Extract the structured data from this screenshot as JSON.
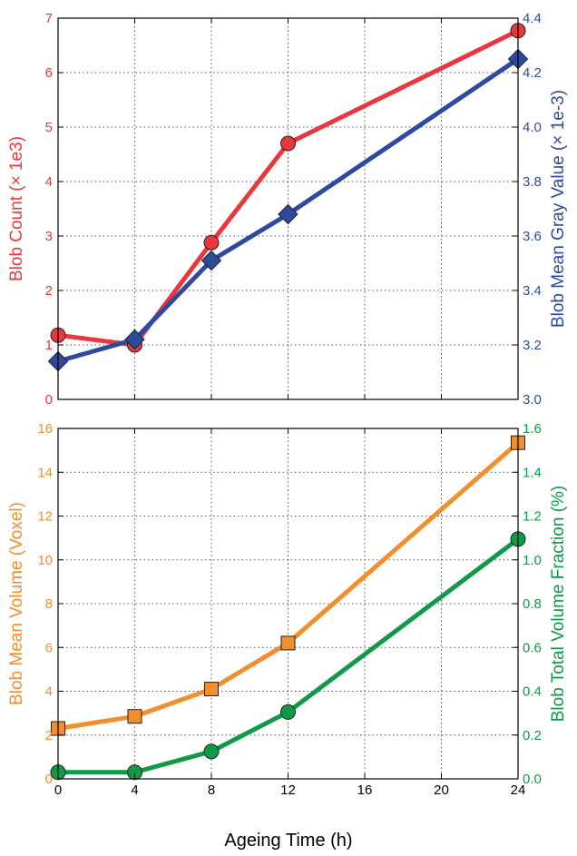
{
  "chart_data": [
    {
      "type": "line",
      "x": [
        0,
        4,
        8,
        12,
        24
      ],
      "xticks": [
        "0",
        "4",
        "8",
        "12",
        "16",
        "20",
        "24"
      ],
      "xlim": [
        0,
        24
      ],
      "grid": true,
      "left_axis": {
        "label": "Blob Count  (× 1e3)",
        "ylim": [
          0,
          7
        ],
        "ticks": [
          "0",
          "1",
          "2",
          "3",
          "4",
          "5",
          "6",
          "7"
        ],
        "color": "#e8383d"
      },
      "right_axis": {
        "label": "Blob Mean Gray Value (× 1e-3)",
        "ylim": [
          3.0,
          4.4
        ],
        "ticks": [
          "3.0",
          "3.2",
          "3.4",
          "3.6",
          "3.8",
          "4.0",
          "4.2",
          "4.4"
        ],
        "color": "#2e4a9e"
      },
      "series": [
        {
          "axis": "left",
          "marker": "circle",
          "color": "#e8383d",
          "values": [
            1.18,
            1.0,
            2.88,
            4.7,
            6.77
          ]
        },
        {
          "axis": "right",
          "marker": "diamond",
          "color": "#2e4a9e",
          "values": [
            3.14,
            3.22,
            3.51,
            3.68,
            4.25
          ]
        }
      ]
    },
    {
      "type": "line",
      "x": [
        0,
        4,
        8,
        12,
        24
      ],
      "xticks": [
        "0",
        "4",
        "8",
        "12",
        "16",
        "20",
        "24"
      ],
      "xlim": [
        0,
        24
      ],
      "xlabel": "Ageing Time (h)",
      "grid": true,
      "left_axis": {
        "label": "Blob Mean Volume (Voxel)",
        "ylim": [
          0,
          16
        ],
        "ticks": [
          "0",
          "2",
          "4",
          "6",
          "8",
          "10",
          "12",
          "14",
          "16"
        ],
        "color": "#f28e2c"
      },
      "right_axis": {
        "label": "Blob Total Volume Fraction (%)",
        "ylim": [
          0.0,
          1.6
        ],
        "ticks": [
          "0.0",
          "0.2",
          "0.4",
          "0.6",
          "0.8",
          "1.0",
          "1.2",
          "1.4",
          "1.6"
        ],
        "color": "#0f9a48"
      },
      "series": [
        {
          "axis": "left",
          "marker": "square",
          "color": "#f28e2c",
          "values": [
            2.3,
            2.85,
            4.1,
            6.2,
            15.35
          ]
        },
        {
          "axis": "right",
          "marker": "circle",
          "color": "#0f9a48",
          "values": [
            0.03,
            0.03,
            0.125,
            0.305,
            1.095
          ]
        }
      ]
    }
  ]
}
